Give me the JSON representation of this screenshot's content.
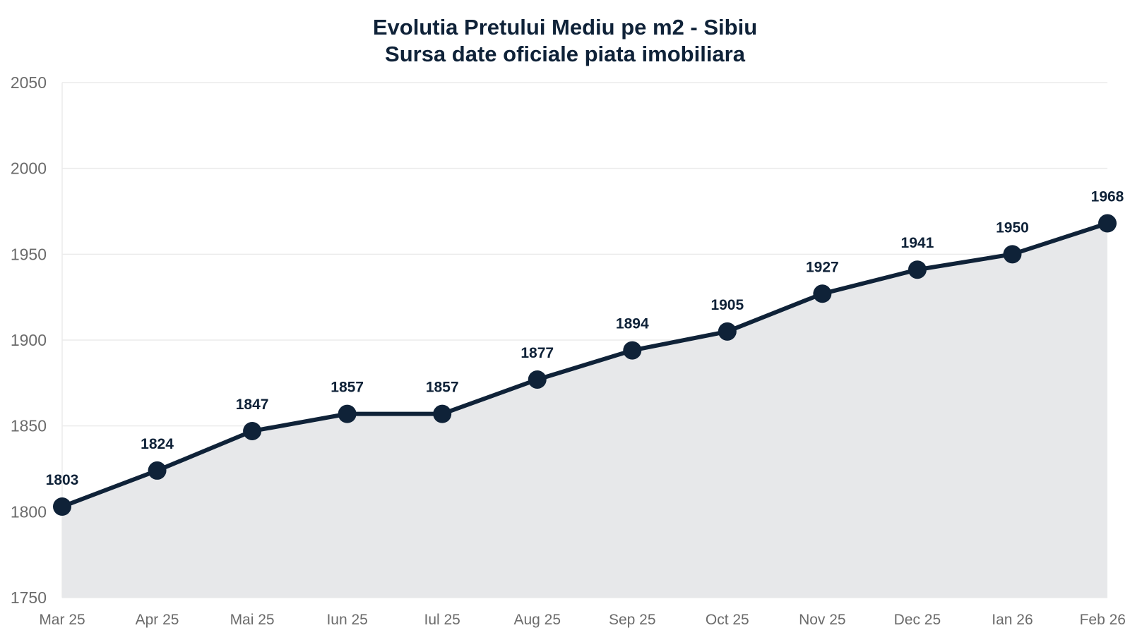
{
  "colors": {
    "line": "#0f2238",
    "area": "#e7e8ea",
    "grid": "#ebebeb",
    "axis_text": "#6b6b6b",
    "title": "#0f2238",
    "label": "#0f2238",
    "background": "#ffffff"
  },
  "chart_data": {
    "type": "area",
    "title": "Evolutia Pretului Mediu pe m2 - Sibiu",
    "subtitle": "Sursa date oficiale piata imobiliara",
    "xlabel": "",
    "ylabel": "",
    "categories": [
      "Mar 25",
      "Apr 25",
      "Mai 25",
      "Iun 25",
      "Iul 25",
      "Aug 25",
      "Sep 25",
      "Oct 25",
      "Nov 25",
      "Dec 25",
      "Ian 26",
      "Feb 26"
    ],
    "values": [
      1803,
      1824,
      1847,
      1857,
      1857,
      1877,
      1894,
      1905,
      1927,
      1941,
      1950,
      1968
    ],
    "ylim": [
      1750,
      2050
    ],
    "yticks": [
      1750,
      1800,
      1850,
      1900,
      1950,
      2000,
      2050
    ],
    "grid": true,
    "legend": "none",
    "data_labels": true,
    "markers": true
  }
}
